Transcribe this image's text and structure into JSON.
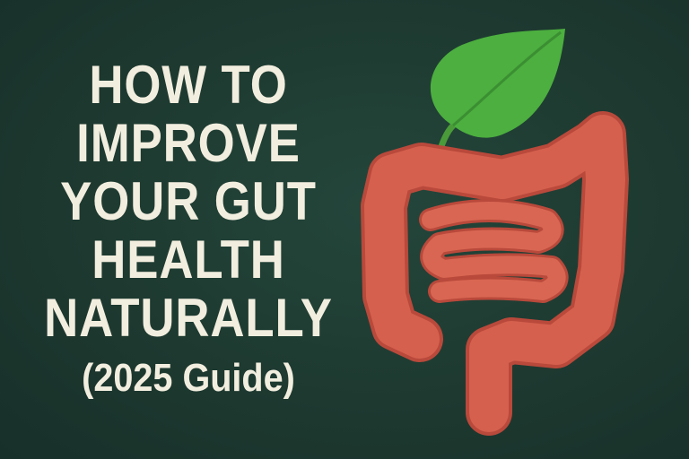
{
  "title": {
    "lines": [
      "HOW TO",
      "IMPROVE",
      "YOUR GUT",
      "HEALTH",
      "NATURALLY"
    ],
    "subtitle": "(2025 Guide)"
  },
  "colors": {
    "background": "#1e3a31",
    "text": "#f2eedf",
    "intestine": "#d5604e",
    "leaf": "#4caf3f"
  },
  "illustration": {
    "icons": [
      "intestine-illustration",
      "leaf-icon"
    ]
  }
}
